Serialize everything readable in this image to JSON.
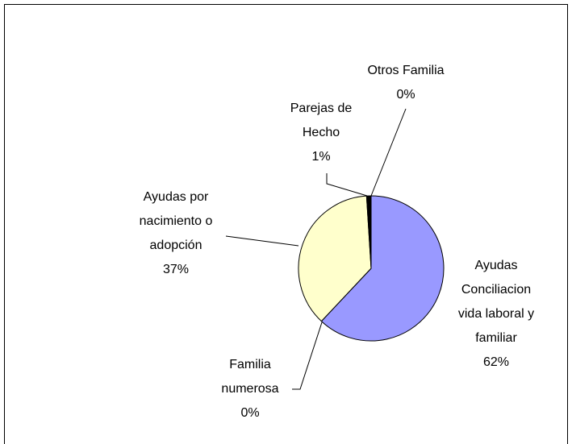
{
  "chart_data": {
    "type": "pie",
    "categories": [
      "Ayudas\nConciliacion\nvida laboral y\nfamiliar",
      "Familia\nnumerosa",
      "Ayudas por\nnacimiento o\nadopción",
      "Parejas de\nHecho",
      "Otros Familia"
    ],
    "values": [
      62,
      0,
      37,
      1,
      0
    ],
    "value_labels": [
      "62%",
      "0%",
      "37%",
      "1%",
      "0%"
    ],
    "colors": [
      "#9999ff",
      "#993366",
      "#ffffcc",
      "#000000",
      "#ccffff"
    ]
  }
}
